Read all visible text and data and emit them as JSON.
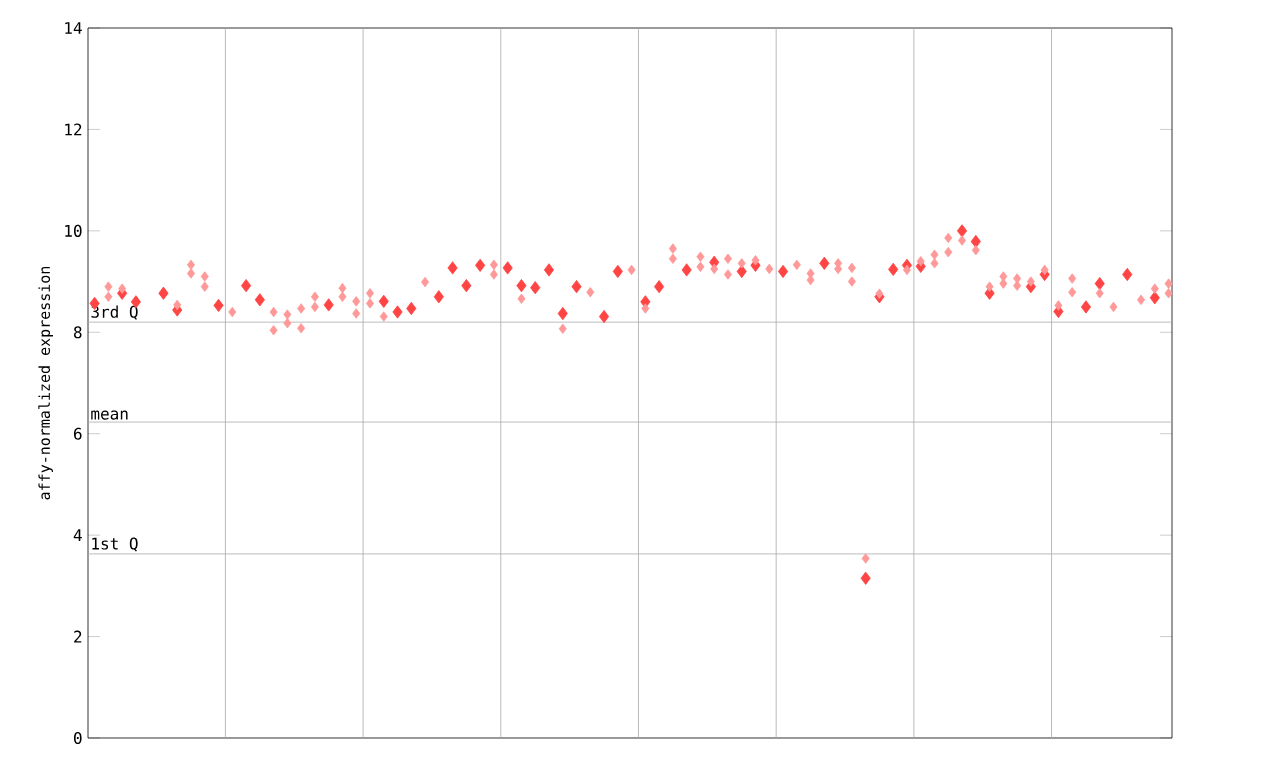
{
  "chart_data": {
    "type": "scatter",
    "ylabel": "affy-normalized expression",
    "ylim": [
      0,
      14
    ],
    "yticks": [
      0,
      2,
      4,
      6,
      8,
      10,
      12,
      14
    ],
    "marker": "diamond",
    "categories": [
      null,
      null,
      null,
      null,
      null,
      null,
      null,
      null,
      null,
      null,
      null,
      null,
      null,
      null,
      null,
      null,
      null,
      null,
      null,
      null,
      null,
      null,
      null,
      null,
      null,
      null,
      null,
      null,
      null,
      null,
      null,
      null,
      null,
      null,
      null,
      null,
      null,
      null,
      null,
      null,
      null,
      null,
      null,
      null,
      null,
      null,
      null,
      null,
      null,
      null,
      null,
      null,
      null,
      null,
      null,
      null,
      null,
      null,
      null,
      null,
      null,
      null,
      null,
      null,
      null,
      null,
      null,
      null,
      null,
      null,
      null,
      null,
      null,
      null,
      null,
      null,
      null,
      null,
      null
    ],
    "series": [
      {
        "color": "#ff4444",
        "values": [
          8.57,
          null,
          8.77,
          8.6,
          null,
          8.77,
          8.44,
          null,
          null,
          8.53,
          null,
          8.92,
          8.64,
          null,
          null,
          null,
          null,
          8.54,
          null,
          null,
          null,
          8.61,
          8.4,
          8.47,
          null,
          8.7,
          9.27,
          8.92,
          9.32,
          null,
          9.27,
          8.92,
          8.88,
          9.23,
          8.37,
          8.9,
          null,
          8.31,
          9.2,
          null,
          8.6,
          8.9,
          null,
          9.23,
          null,
          9.38,
          null,
          9.2,
          9.32,
          null,
          9.2,
          null,
          null,
          9.36,
          null,
          null,
          3.15,
          8.7,
          9.24,
          9.32,
          9.3,
          null,
          null,
          10.0,
          9.79,
          8.77,
          null,
          null,
          8.9,
          9.14,
          8.41,
          null,
          8.5,
          8.96,
          null,
          9.14,
          null,
          8.68,
          null
        ]
      },
      {
        "color": "#ff9999",
        "values": [
          null,
          8.9,
          8.86,
          null,
          null,
          null,
          8.54,
          9.33,
          9.1,
          null,
          8.4,
          null,
          null,
          8.4,
          8.35,
          8.47,
          8.7,
          null,
          8.87,
          8.61,
          8.77,
          8.31,
          null,
          null,
          8.99,
          null,
          null,
          null,
          null,
          9.33,
          null,
          8.66,
          null,
          null,
          8.07,
          null,
          8.79,
          null,
          null,
          9.23,
          8.47,
          null,
          9.65,
          null,
          9.49,
          9.25,
          9.45,
          9.36,
          9.42,
          9.25,
          null,
          9.33,
          9.16,
          null,
          9.36,
          9.27,
          3.54,
          8.76,
          null,
          9.23,
          9.4,
          9.53,
          9.86,
          9.81,
          9.62,
          8.9,
          9.1,
          9.06,
          9.0,
          9.23,
          8.53,
          9.06,
          null,
          8.77,
          8.5,
          null,
          8.64,
          8.86,
          8.96
        ]
      },
      {
        "color": "#ff9999",
        "values": [
          null,
          8.7,
          null,
          null,
          null,
          null,
          null,
          9.16,
          8.9,
          null,
          null,
          null,
          null,
          8.04,
          8.18,
          8.08,
          8.5,
          null,
          8.7,
          8.37,
          8.57,
          null,
          null,
          null,
          null,
          null,
          null,
          null,
          null,
          9.14,
          null,
          null,
          null,
          null,
          null,
          null,
          null,
          null,
          null,
          null,
          null,
          null,
          9.45,
          null,
          9.29,
          null,
          9.14,
          null,
          null,
          null,
          null,
          null,
          9.03,
          null,
          9.25,
          9.0,
          null,
          null,
          null,
          null,
          null,
          9.36,
          9.58,
          null,
          null,
          null,
          8.96,
          8.92,
          null,
          null,
          null,
          8.79,
          null,
          null,
          null,
          null,
          null,
          null,
          8.77
        ]
      }
    ],
    "ref_lines": [
      {
        "axis": "y",
        "value": 8.2,
        "label": "3rd Q",
        "color": "#aaaaaa"
      },
      {
        "axis": "y",
        "value": 6.23,
        "label": "mean",
        "color": "#aaaaaa"
      },
      {
        "axis": "y",
        "value": 3.63,
        "label": "1st Q",
        "color": "#aaaaaa"
      }
    ]
  }
}
